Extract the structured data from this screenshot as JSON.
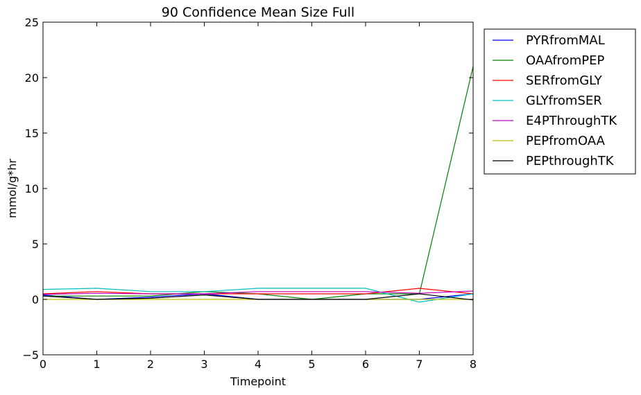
{
  "chart_data": {
    "type": "line",
    "title": "90 Confidence Mean Size Full",
    "xlabel": "Timepoint",
    "ylabel": "mmol/g*hr",
    "xlim": [
      0,
      8
    ],
    "ylim": [
      -5,
      25
    ],
    "xticks": [
      0,
      1,
      2,
      3,
      4,
      5,
      6,
      7,
      8
    ],
    "yticks": [
      -5,
      0,
      5,
      10,
      15,
      20,
      25
    ],
    "grid": false,
    "legend_position": "outside-top-right",
    "x": [
      0,
      1,
      2,
      3,
      4,
      5,
      6,
      7,
      8
    ],
    "series": [
      {
        "name": "PYRfromMAL",
        "color": "#0000ff",
        "values": [
          0.4,
          0.0,
          0.2,
          0.5,
          0.0,
          0.0,
          0.0,
          0.0,
          0.5
        ]
      },
      {
        "name": "OAAfromPEP",
        "color": "#008000",
        "values": [
          0.3,
          0.3,
          0.3,
          0.7,
          0.5,
          0.0,
          0.5,
          0.5,
          21.0
        ]
      },
      {
        "name": "SERfromGLY",
        "color": "#ff0000",
        "values": [
          0.5,
          0.7,
          0.5,
          0.5,
          0.5,
          0.5,
          0.5,
          1.0,
          0.5
        ]
      },
      {
        "name": "GLYfromSER",
        "color": "#00bfbf",
        "values": [
          0.9,
          1.0,
          0.7,
          0.7,
          1.0,
          1.0,
          1.0,
          -0.25,
          0.5
        ]
      },
      {
        "name": "E4PThroughTK",
        "color": "#bf00bf",
        "values": [
          0.45,
          0.55,
          0.5,
          0.5,
          0.7,
          0.7,
          0.7,
          0.55,
          0.75
        ]
      },
      {
        "name": "PEPfromOAA",
        "color": "#bfbf00",
        "values": [
          0.0,
          0.0,
          0.0,
          0.0,
          0.0,
          0.0,
          0.0,
          0.0,
          0.0
        ]
      },
      {
        "name": "PEPthroughTK",
        "color": "#000000",
        "values": [
          0.3,
          0.0,
          0.1,
          0.4,
          0.0,
          0.0,
          0.0,
          0.5,
          -0.05
        ]
      }
    ]
  }
}
